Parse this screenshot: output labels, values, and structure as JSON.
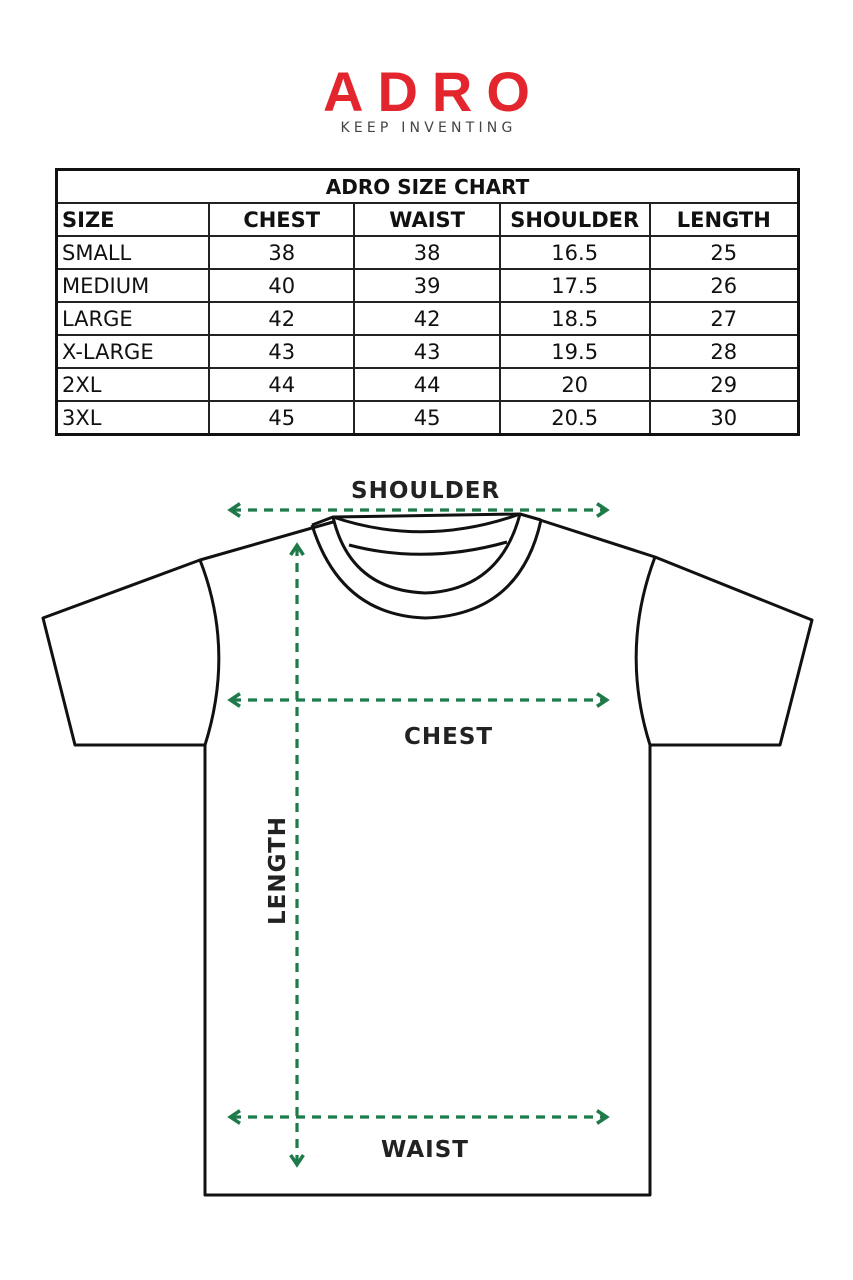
{
  "logo": {
    "brand": "ADRO",
    "tagline": "KEEP INVENTING",
    "color": "#e3262d"
  },
  "table": {
    "title": "ADRO SIZE CHART",
    "headers": [
      "SIZE",
      "CHEST",
      "WAIST",
      "SHOULDER",
      "LENGTH"
    ],
    "rows": [
      [
        "SMALL",
        "38",
        "38",
        "16.5",
        "25"
      ],
      [
        "MEDIUM",
        "40",
        "39",
        "17.5",
        "26"
      ],
      [
        "LARGE",
        "42",
        "42",
        "18.5",
        "27"
      ],
      [
        "X-LARGE",
        "43",
        "43",
        "19.5",
        "28"
      ],
      [
        "2XL",
        "44",
        "44",
        "20",
        "29"
      ],
      [
        "3XL",
        "45",
        "45",
        "20.5",
        "30"
      ]
    ]
  },
  "diagram": {
    "labels": {
      "shoulder": "SHOULDER",
      "chest": "CHEST",
      "waist": "WAIST",
      "length": "LENGTH"
    },
    "arrow_color": "#1f7a4a",
    "outline_color": "#111111"
  }
}
